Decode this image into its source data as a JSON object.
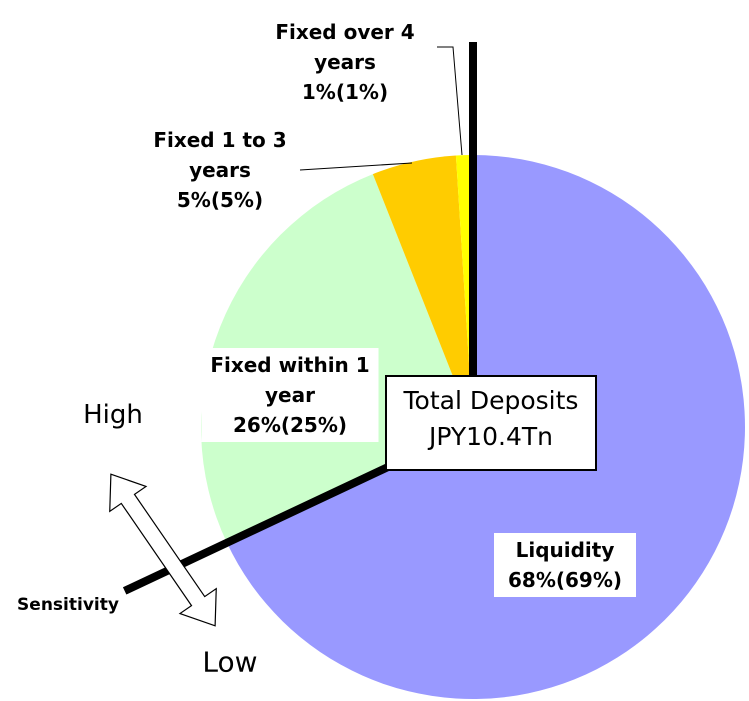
{
  "chart_data": {
    "type": "pie",
    "categories": [
      "Liquidity",
      "Fixed within 1 year",
      "Fixed 1 to 3 years",
      "Fixed over 4 years"
    ],
    "values": [
      68,
      26,
      5,
      1
    ],
    "value_labels": [
      "68%(69%)",
      "26%(25%)",
      "5%(5%)",
      "1%(1%)"
    ],
    "colors": [
      "#9999ff",
      "#ccffcc",
      "#ffcc00",
      "#ffff00"
    ],
    "center_label": [
      "Total Deposits",
      "JPY10.4Tn"
    ],
    "high_label": "High",
    "low_label": "Low",
    "axis_label": "Sensitivity"
  }
}
